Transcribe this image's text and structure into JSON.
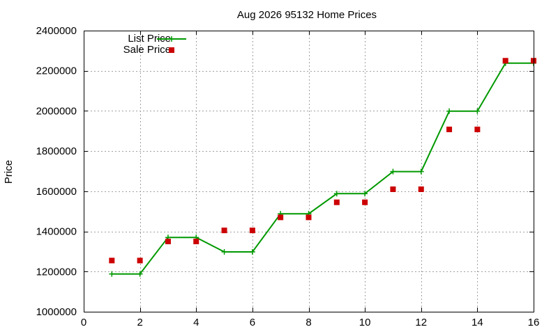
{
  "chart_data": {
    "type": "line",
    "title": "Aug 2026 95132 Home Prices",
    "xlabel": "",
    "ylabel": "Price",
    "xlim": [
      0,
      16
    ],
    "ylim": [
      1000000,
      2400000
    ],
    "x_ticks": [
      0,
      2,
      4,
      6,
      8,
      10,
      12,
      14,
      16
    ],
    "y_ticks": [
      1000000,
      1200000,
      1400000,
      1600000,
      1800000,
      2000000,
      2200000,
      2400000
    ],
    "x_tick_labels": [
      "0",
      "2",
      "4",
      "6",
      "8",
      "10",
      "12",
      "14",
      "16"
    ],
    "y_tick_labels": [
      "1000000",
      "1200000",
      "1400000",
      "1600000",
      "1800000",
      "2000000",
      "2200000",
      "2400000"
    ],
    "grid": true,
    "legend_position": "top-left",
    "series": [
      {
        "name": "List Price",
        "style": "line-with-plus-markers",
        "color": "#009900",
        "x": [
          1,
          2,
          3,
          4,
          5,
          6,
          7,
          8,
          9,
          10,
          11,
          12,
          13,
          14,
          15,
          16
        ],
        "y": [
          1188000,
          1188000,
          1370000,
          1370000,
          1298000,
          1298000,
          1488000,
          1488000,
          1588000,
          1588000,
          1698000,
          1698000,
          1999000,
          1999000,
          2238000,
          2238000
        ]
      },
      {
        "name": "Sale Price",
        "style": "square-markers",
        "color": "#cc0000",
        "x": [
          1,
          2,
          3,
          4,
          5,
          6,
          7,
          8,
          9,
          10,
          11,
          12,
          13,
          14,
          15,
          16
        ],
        "y": [
          1255000,
          1255000,
          1350000,
          1350000,
          1405000,
          1405000,
          1470000,
          1470000,
          1545000,
          1545000,
          1610000,
          1610000,
          1908000,
          1908000,
          2250000,
          2250000
        ]
      }
    ]
  }
}
